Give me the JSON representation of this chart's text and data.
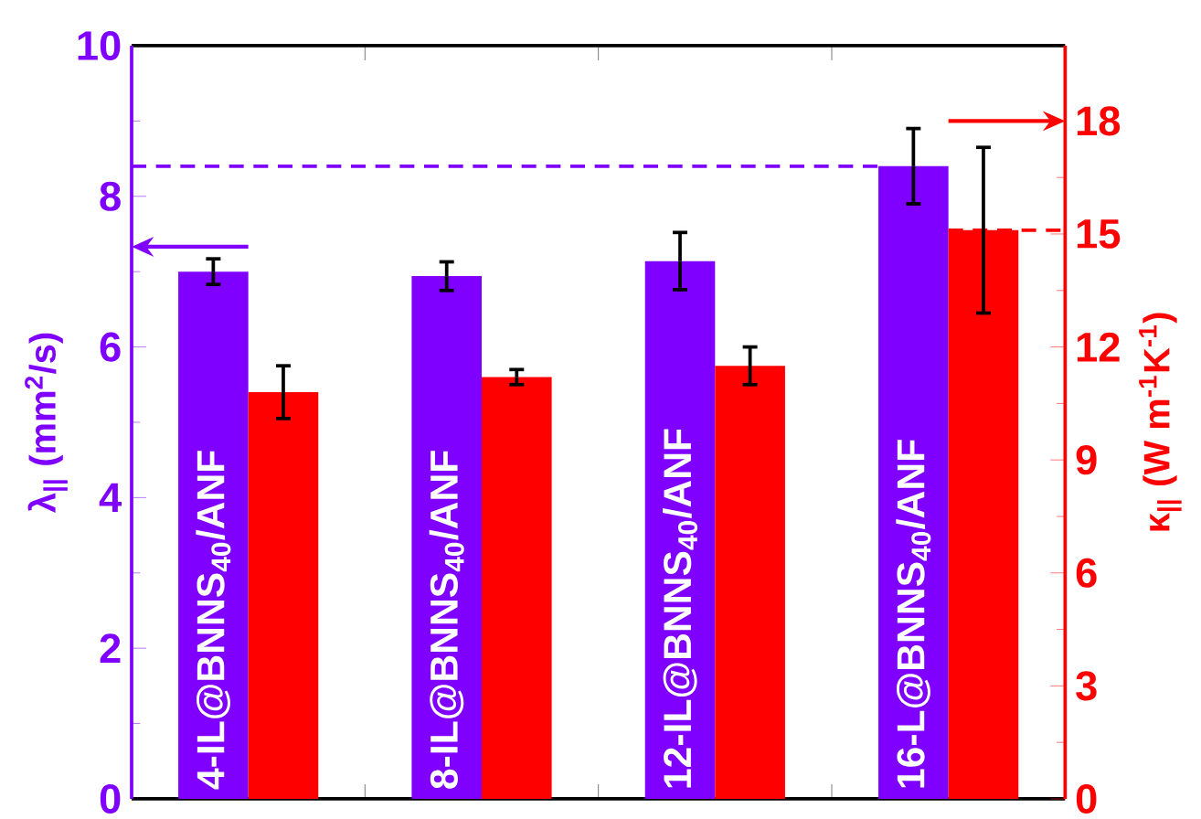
{
  "chart_data": {
    "type": "bar",
    "categories": [
      "4-IL@BNNS$_{40}$/ANF",
      "8-IL@BNNS$_{40}$/ANF",
      "12-IL@BNNS$_{40}$/ANF",
      "16-L@BNNS$_{40}$/ANF"
    ],
    "ylabel": "λ$_{||}$ (mm$^{2}$/s)",
    "y2label": "κ$_{||}$ (W m$^{-1}$K$^{-1}$)",
    "series": [
      {
        "color": "#7f00ff",
        "values": [
          7.0,
          6.94,
          7.14,
          8.4
        ],
        "errors": [
          0.17,
          0.19,
          0.38,
          0.5
        ]
      },
      {
        "color": "#ff0000",
        "axis": "y2",
        "values": [
          10.8,
          11.2,
          11.5,
          15.1
        ],
        "errors": [
          0.7,
          0.2,
          0.5,
          2.2
        ]
      }
    ],
    "ylim": [
      0,
      10
    ],
    "yticks": [
      0,
      2,
      4,
      6,
      8,
      10
    ],
    "y2lim": [
      0,
      20
    ],
    "y2ticks": [
      0,
      3,
      6,
      9,
      12,
      15,
      18
    ],
    "ref_lines": [
      {
        "axis": "y",
        "value": 8.4,
        "color": "#7f00ff",
        "line_style": "dashed"
      },
      {
        "axis": "y2",
        "value": 15.1,
        "color": "#ff0000",
        "line_style": "dashed"
      }
    ]
  }
}
